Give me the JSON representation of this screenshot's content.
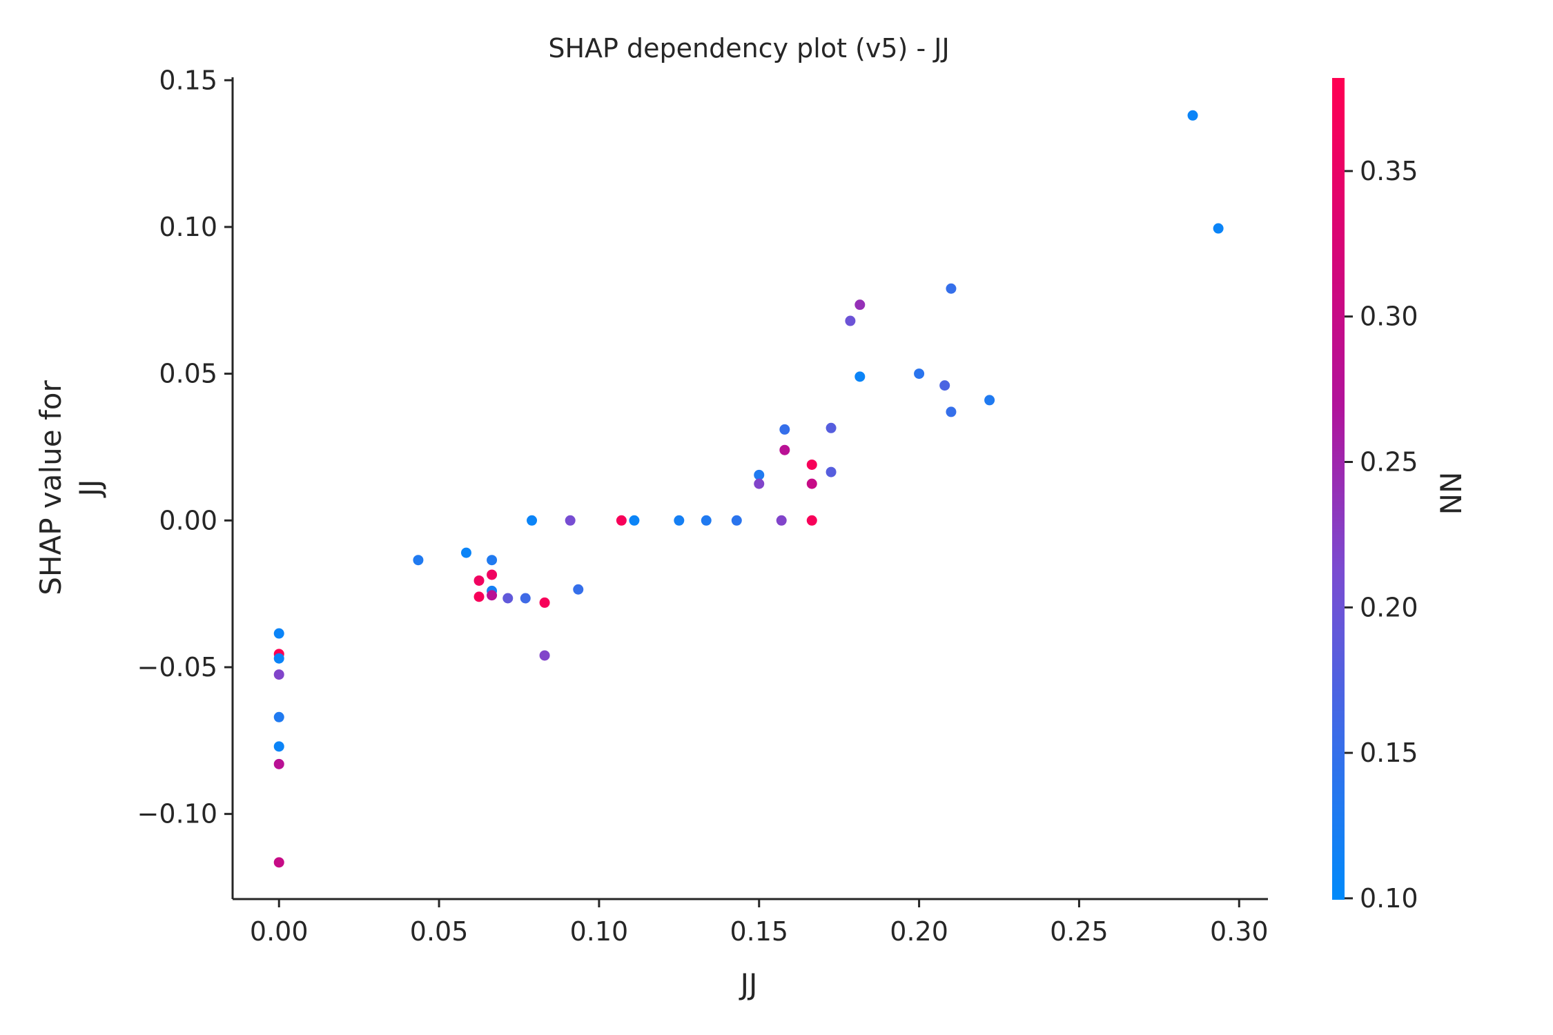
{
  "chart_data": {
    "type": "scatter",
    "title": "SHAP dependency plot (v5) - JJ",
    "xlabel": "JJ",
    "ylabel_line1": "SHAP value for",
    "ylabel_line2": "JJ",
    "xlim": [
      -0.0145,
      0.309
    ],
    "ylim": [
      -0.129,
      0.151
    ],
    "x_ticks": [
      0.0,
      0.05,
      0.1,
      0.15,
      0.2,
      0.25,
      0.3
    ],
    "x_tick_labels": [
      "0.00",
      "0.05",
      "0.10",
      "0.15",
      "0.20",
      "0.25",
      "0.30"
    ],
    "y_ticks": [
      -0.1,
      -0.05,
      0.0,
      0.05,
      0.1,
      0.15
    ],
    "y_tick_labels": [
      "−0.10",
      "−0.05",
      "0.00",
      "0.05",
      "0.10",
      "0.15"
    ],
    "colorbar": {
      "label": "NN",
      "range": [
        0.0995,
        0.382
      ],
      "ticks": [
        0.1,
        0.15,
        0.2,
        0.25,
        0.3,
        0.35
      ],
      "tick_labels": [
        "0.10",
        "0.15",
        "0.20",
        "0.25",
        "0.30",
        "0.35"
      ],
      "colormap": [
        "#008AFA",
        "#3B6CE8",
        "#7A4CD1",
        "#B1139B",
        "#D80575",
        "#FF0052"
      ]
    },
    "grid": false,
    "points": [
      {
        "x": 0.0,
        "y": -0.0385,
        "c": 0.11
      },
      {
        "x": 0.0,
        "y": -0.0455,
        "c": 0.38
      },
      {
        "x": 0.0,
        "y": -0.047,
        "c": 0.11
      },
      {
        "x": 0.0,
        "y": -0.0525,
        "c": 0.22
      },
      {
        "x": 0.0,
        "y": -0.067,
        "c": 0.13
      },
      {
        "x": 0.0,
        "y": -0.077,
        "c": 0.11
      },
      {
        "x": 0.0,
        "y": -0.083,
        "c": 0.28
      },
      {
        "x": 0.0,
        "y": -0.1165,
        "c": 0.3
      },
      {
        "x": 0.0435,
        "y": -0.0135,
        "c": 0.13
      },
      {
        "x": 0.0585,
        "y": -0.011,
        "c": 0.11
      },
      {
        "x": 0.0625,
        "y": -0.0205,
        "c": 0.36
      },
      {
        "x": 0.0625,
        "y": -0.026,
        "c": 0.37
      },
      {
        "x": 0.0665,
        "y": -0.0135,
        "c": 0.13
      },
      {
        "x": 0.0665,
        "y": -0.0185,
        "c": 0.36
      },
      {
        "x": 0.0665,
        "y": -0.024,
        "c": 0.12
      },
      {
        "x": 0.0665,
        "y": -0.0255,
        "c": 0.28
      },
      {
        "x": 0.0715,
        "y": -0.0265,
        "c": 0.19
      },
      {
        "x": 0.077,
        "y": -0.0265,
        "c": 0.16
      },
      {
        "x": 0.079,
        "y": 0.0,
        "c": 0.11
      },
      {
        "x": 0.083,
        "y": -0.028,
        "c": 0.37
      },
      {
        "x": 0.083,
        "y": -0.046,
        "c": 0.22
      },
      {
        "x": 0.091,
        "y": 0.0,
        "c": 0.21
      },
      {
        "x": 0.0935,
        "y": -0.0235,
        "c": 0.15
      },
      {
        "x": 0.107,
        "y": 0.0,
        "c": 0.37
      },
      {
        "x": 0.111,
        "y": 0.0,
        "c": 0.11
      },
      {
        "x": 0.125,
        "y": 0.0,
        "c": 0.12
      },
      {
        "x": 0.1335,
        "y": 0.0,
        "c": 0.13
      },
      {
        "x": 0.143,
        "y": 0.0,
        "c": 0.14
      },
      {
        "x": 0.15,
        "y": 0.0155,
        "c": 0.13
      },
      {
        "x": 0.15,
        "y": 0.0125,
        "c": 0.22
      },
      {
        "x": 0.157,
        "y": 0.0,
        "c": 0.22
      },
      {
        "x": 0.158,
        "y": 0.031,
        "c": 0.15
      },
      {
        "x": 0.158,
        "y": 0.024,
        "c": 0.28
      },
      {
        "x": 0.1665,
        "y": 0.019,
        "c": 0.37
      },
      {
        "x": 0.1665,
        "y": 0.0125,
        "c": 0.3
      },
      {
        "x": 0.1665,
        "y": 0.0,
        "c": 0.37
      },
      {
        "x": 0.1725,
        "y": 0.0315,
        "c": 0.18
      },
      {
        "x": 0.1725,
        "y": 0.0165,
        "c": 0.18
      },
      {
        "x": 0.1785,
        "y": 0.068,
        "c": 0.2
      },
      {
        "x": 0.1815,
        "y": 0.0735,
        "c": 0.24
      },
      {
        "x": 0.1815,
        "y": 0.049,
        "c": 0.11
      },
      {
        "x": 0.2,
        "y": 0.05,
        "c": 0.14
      },
      {
        "x": 0.208,
        "y": 0.046,
        "c": 0.17
      },
      {
        "x": 0.21,
        "y": 0.079,
        "c": 0.15
      },
      {
        "x": 0.21,
        "y": 0.037,
        "c": 0.15
      },
      {
        "x": 0.222,
        "y": 0.041,
        "c": 0.13
      },
      {
        "x": 0.2855,
        "y": 0.138,
        "c": 0.11
      },
      {
        "x": 0.2935,
        "y": 0.0995,
        "c": 0.11
      }
    ]
  }
}
